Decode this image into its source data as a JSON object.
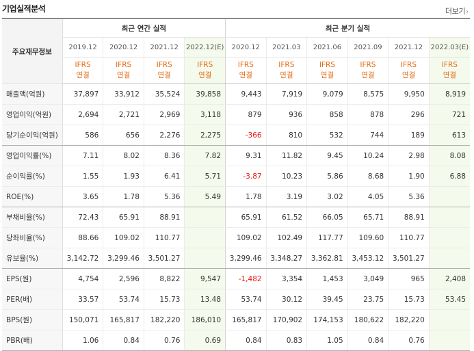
{
  "title": "기업실적분석",
  "more_label": "더보기",
  "header": {
    "corner_label": "주요재무정보",
    "annual_group": "최근 연간 실적",
    "quarter_group": "최근 분기 실적",
    "periods": [
      "2019.12",
      "2020.12",
      "2021.12",
      "2022.12(E)",
      "2020.12",
      "2021.03",
      "2021.06",
      "2021.09",
      "2021.12",
      "2022.03(E)"
    ],
    "basis_top": "IFRS",
    "basis_bottom": "연결"
  },
  "rows": [
    {
      "label": "매출액(억원)",
      "values": [
        "37,897",
        "33,912",
        "35,524",
        "39,858",
        "9,443",
        "7,919",
        "9,079",
        "8,575",
        "9,950",
        "8,919"
      ]
    },
    {
      "label": "영업이익(억원)",
      "values": [
        "2,694",
        "2,721",
        "2,969",
        "3,118",
        "879",
        "936",
        "858",
        "878",
        "296",
        "721"
      ]
    },
    {
      "label": "당기순이익(억원)",
      "values": [
        "586",
        "656",
        "2,276",
        "2,275",
        "-366",
        "810",
        "532",
        "744",
        "189",
        "613"
      ]
    },
    {
      "label": "영업이익률(%)",
      "values": [
        "7.11",
        "8.02",
        "8.36",
        "7.82",
        "9.31",
        "11.82",
        "9.45",
        "10.24",
        "2.98",
        "8.08"
      ]
    },
    {
      "label": "순이익률(%)",
      "values": [
        "1.55",
        "1.93",
        "6.41",
        "5.71",
        "-3.87",
        "10.23",
        "5.86",
        "8.68",
        "1.90",
        "6.88"
      ]
    },
    {
      "label": "ROE(%)",
      "values": [
        "3.65",
        "1.78",
        "5.36",
        "5.49",
        "1.78",
        "3.19",
        "3.02",
        "4.05",
        "5.36",
        ""
      ]
    },
    {
      "label": "부채비율(%)",
      "values": [
        "72.43",
        "65.91",
        "88.91",
        "",
        "65.91",
        "61.52",
        "66.05",
        "65.71",
        "88.91",
        ""
      ]
    },
    {
      "label": "당좌비율(%)",
      "values": [
        "88.66",
        "109.02",
        "110.77",
        "",
        "109.02",
        "102.49",
        "117.77",
        "109.60",
        "110.77",
        ""
      ]
    },
    {
      "label": "유보율(%)",
      "values": [
        "3,142.72",
        "3,299.46",
        "3,501.27",
        "",
        "3,299.46",
        "3,348.27",
        "3,362.81",
        "3,453.12",
        "3,501.27",
        ""
      ]
    },
    {
      "label": "EPS(원)",
      "values": [
        "4,754",
        "2,596",
        "8,822",
        "9,547",
        "-1,482",
        "3,354",
        "1,453",
        "3,049",
        "965",
        "2,408"
      ]
    },
    {
      "label": "PER(배)",
      "values": [
        "33.57",
        "53.74",
        "15.73",
        "13.48",
        "53.74",
        "30.12",
        "39.45",
        "23.75",
        "15.73",
        "53.45"
      ]
    },
    {
      "label": "BPS(원)",
      "values": [
        "150,071",
        "165,817",
        "182,220",
        "186,010",
        "165,817",
        "170,902",
        "174,153",
        "180,622",
        "182,220",
        ""
      ]
    },
    {
      "label": "PBR(배)",
      "values": [
        "1.06",
        "0.84",
        "0.76",
        "0.69",
        "0.84",
        "0.83",
        "1.05",
        "0.84",
        "0.76",
        ""
      ]
    }
  ],
  "colors": {
    "basis": "#e36b12",
    "negative": "#e51919",
    "estimate_bg": "#f4faec"
  }
}
